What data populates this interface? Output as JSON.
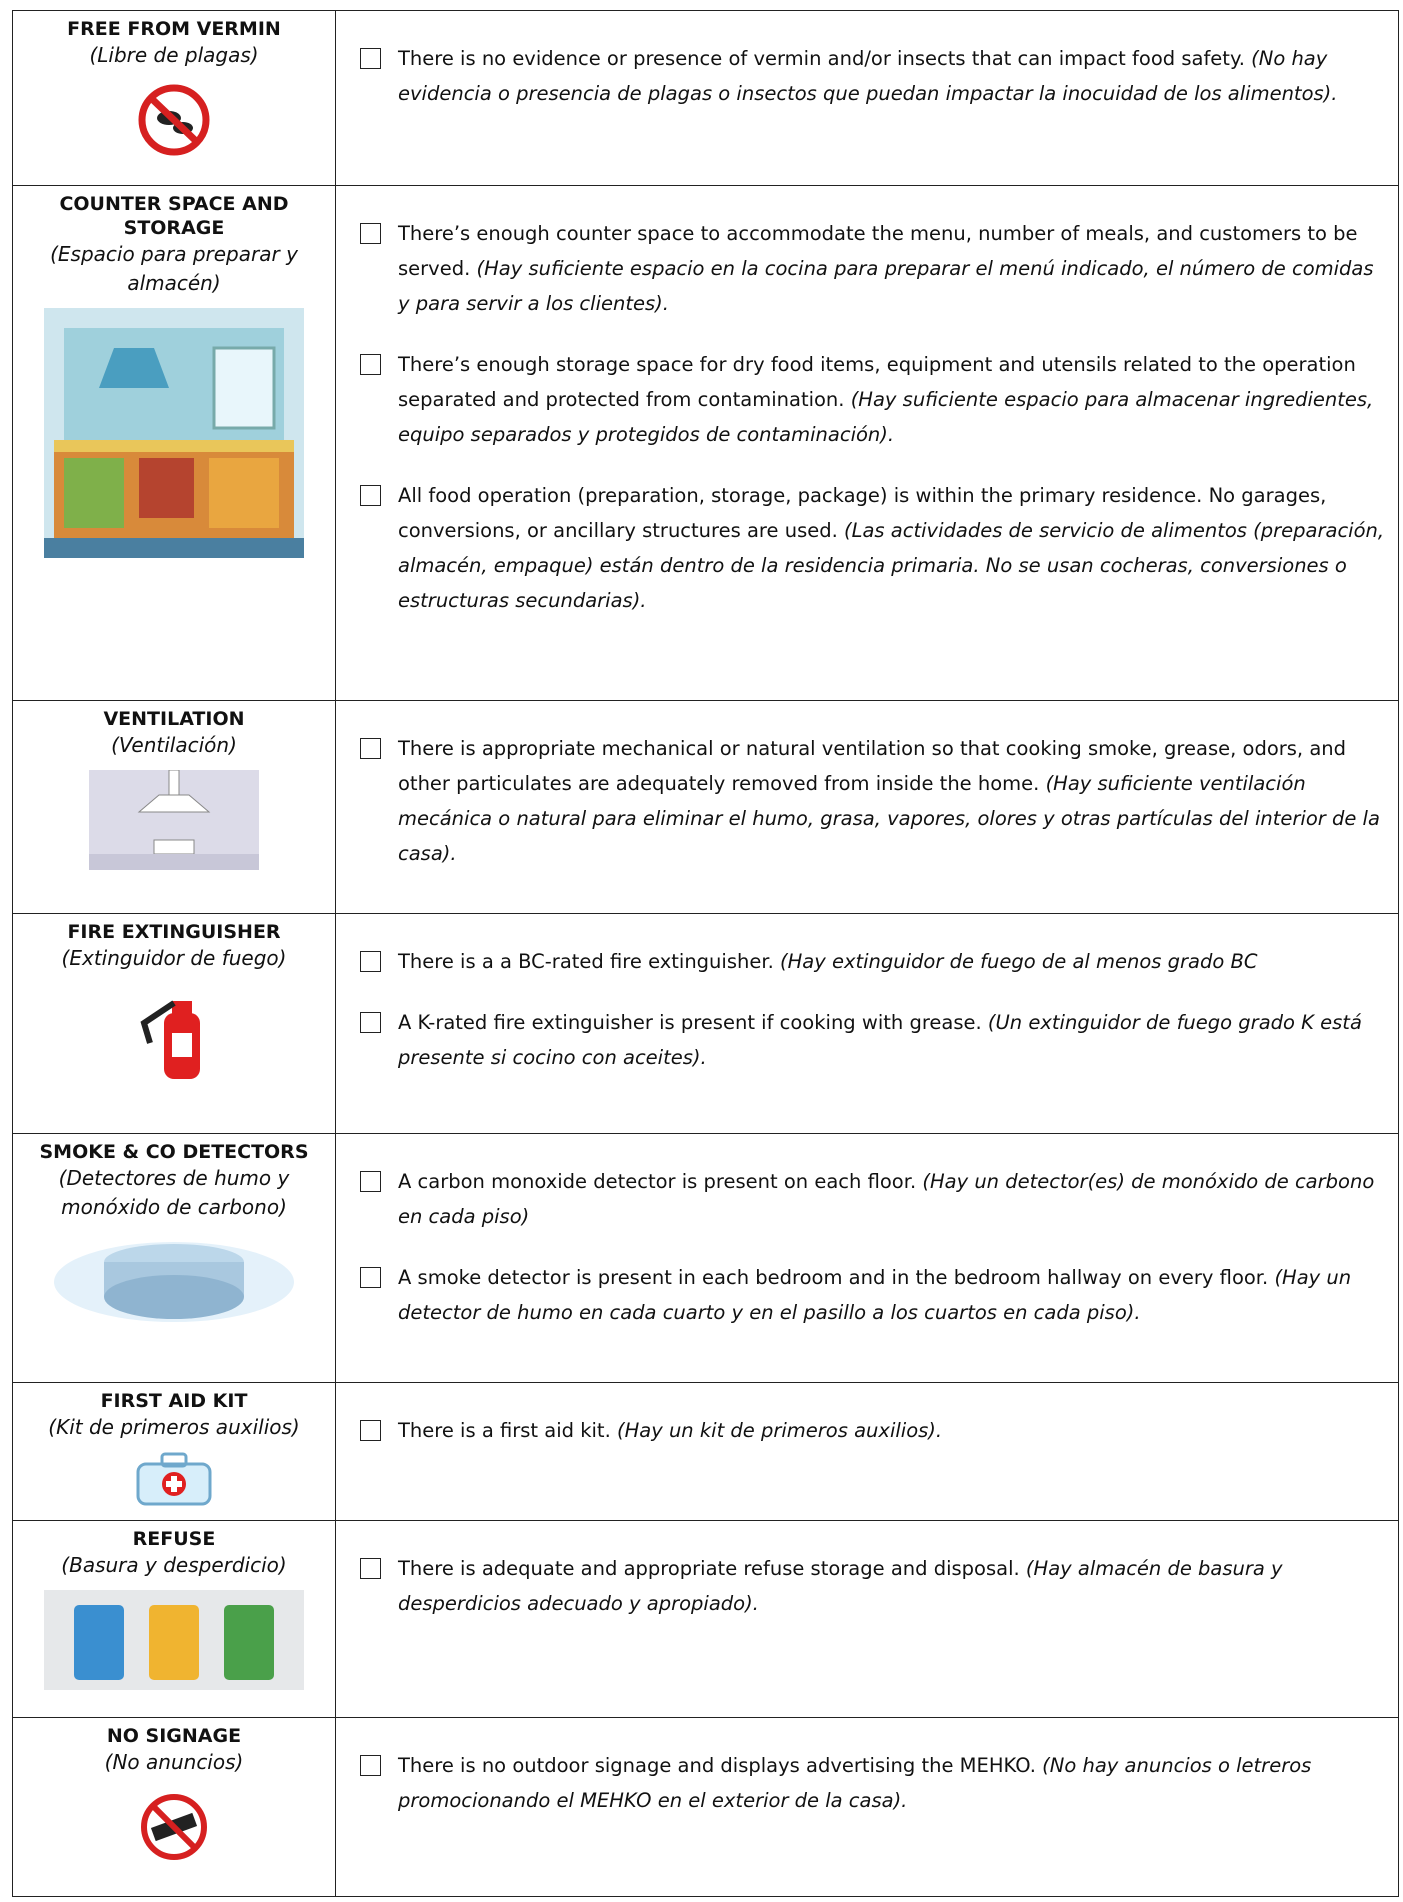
{
  "table": {
    "rows": [
      {
        "title": "FREE FROM VERMIN",
        "subtitle": "(Libre de plagas)",
        "items": [
          {
            "text": "There is no evidence or presence of vermin and/or insects that can impact food safety.",
            "note": "(No hay evidencia o presencia de plagas o insectos que puedan impactar la inocuidad de los alimentos)."
          }
        ]
      },
      {
        "title": "COUNTER SPACE AND STORAGE",
        "subtitle": "(Espacio para preparar y almacén)",
        "items": [
          {
            "text": "There’s enough counter space to accommodate the menu, number of meals, and customers to be served.",
            "note": "(Hay suficiente espacio en la cocina para preparar el menú indicado, el número de comidas y para servir a los clientes)."
          },
          {
            "text": "There’s enough storage space for dry food items, equipment and utensils related to the operation separated and protected from contamination.",
            "note": "(Hay suficiente espacio para almacenar ingredientes, equipo separados y protegidos de contaminación)."
          },
          {
            "text": "All food operation (preparation, storage, package) is within the primary residence. No garages, conversions, or ancillary structures are used.",
            "note": "(Las actividades de servicio de alimentos (preparación, almacén, empaque) están dentro de la residencia primaria. No se usan cocheras, conversiones o estructuras secundarias)."
          }
        ]
      },
      {
        "title": "VENTILATION",
        "subtitle": "(Ventilación)",
        "items": [
          {
            "text": "There is appropriate mechanical or natural ventilation so that cooking smoke, grease, odors, and other particulates are adequately removed from inside the home.",
            "note": "(Hay suficiente ventilación mecánica o natural para eliminar el humo, grasa, vapores, olores y otras partículas del interior de la casa)."
          }
        ]
      },
      {
        "title": "FIRE EXTINGUISHER",
        "subtitle": "(Extinguidor de fuego)",
        "items": [
          {
            "text": "There is a a BC-rated fire extinguisher.",
            "note": "(Hay extinguidor de fuego de al menos grado BC"
          },
          {
            "text": "A K-rated fire extinguisher is present if cooking with grease.",
            "note": "(Un extinguidor de fuego grado K está presente si cocino con aceites)."
          }
        ]
      },
      {
        "title": "SMOKE & CO DETECTORS",
        "subtitle": "(Detectores de humo y monóxido de carbono)",
        "items": [
          {
            "text": "A carbon monoxide detector is present on each floor.",
            "note": "(Hay un detector(es) de monóxido de carbono en cada piso)"
          },
          {
            "text": "A smoke detector is present in each bedroom and in the bedroom hallway on every floor.",
            "note": "(Hay un detector de humo en cada cuarto y en el pasillo a los cuartos en cada piso)."
          }
        ]
      },
      {
        "title": "FIRST AID KIT",
        "subtitle": "(Kit de primeros auxilios)",
        "items": [
          {
            "text": "There is a first aid kit.",
            "note": "(Hay un kit de primeros auxilios)."
          }
        ]
      },
      {
        "title": "REFUSE",
        "subtitle": "(Basura y desperdicio)",
        "items": [
          {
            "text": "There is adequate and appropriate refuse storage and disposal.",
            "note": "(Hay almacén de basura y desperdicios adecuado y apropiado)."
          }
        ]
      },
      {
        "title": "NO SIGNAGE",
        "subtitle": "(No anuncios)",
        "items": [
          {
            "text": "There is no outdoor signage and displays advertising the MEHKO.",
            "note": "(No hay anuncios o letreros promocionando el MEHKO en el exterior de la casa)."
          }
        ]
      }
    ]
  }
}
